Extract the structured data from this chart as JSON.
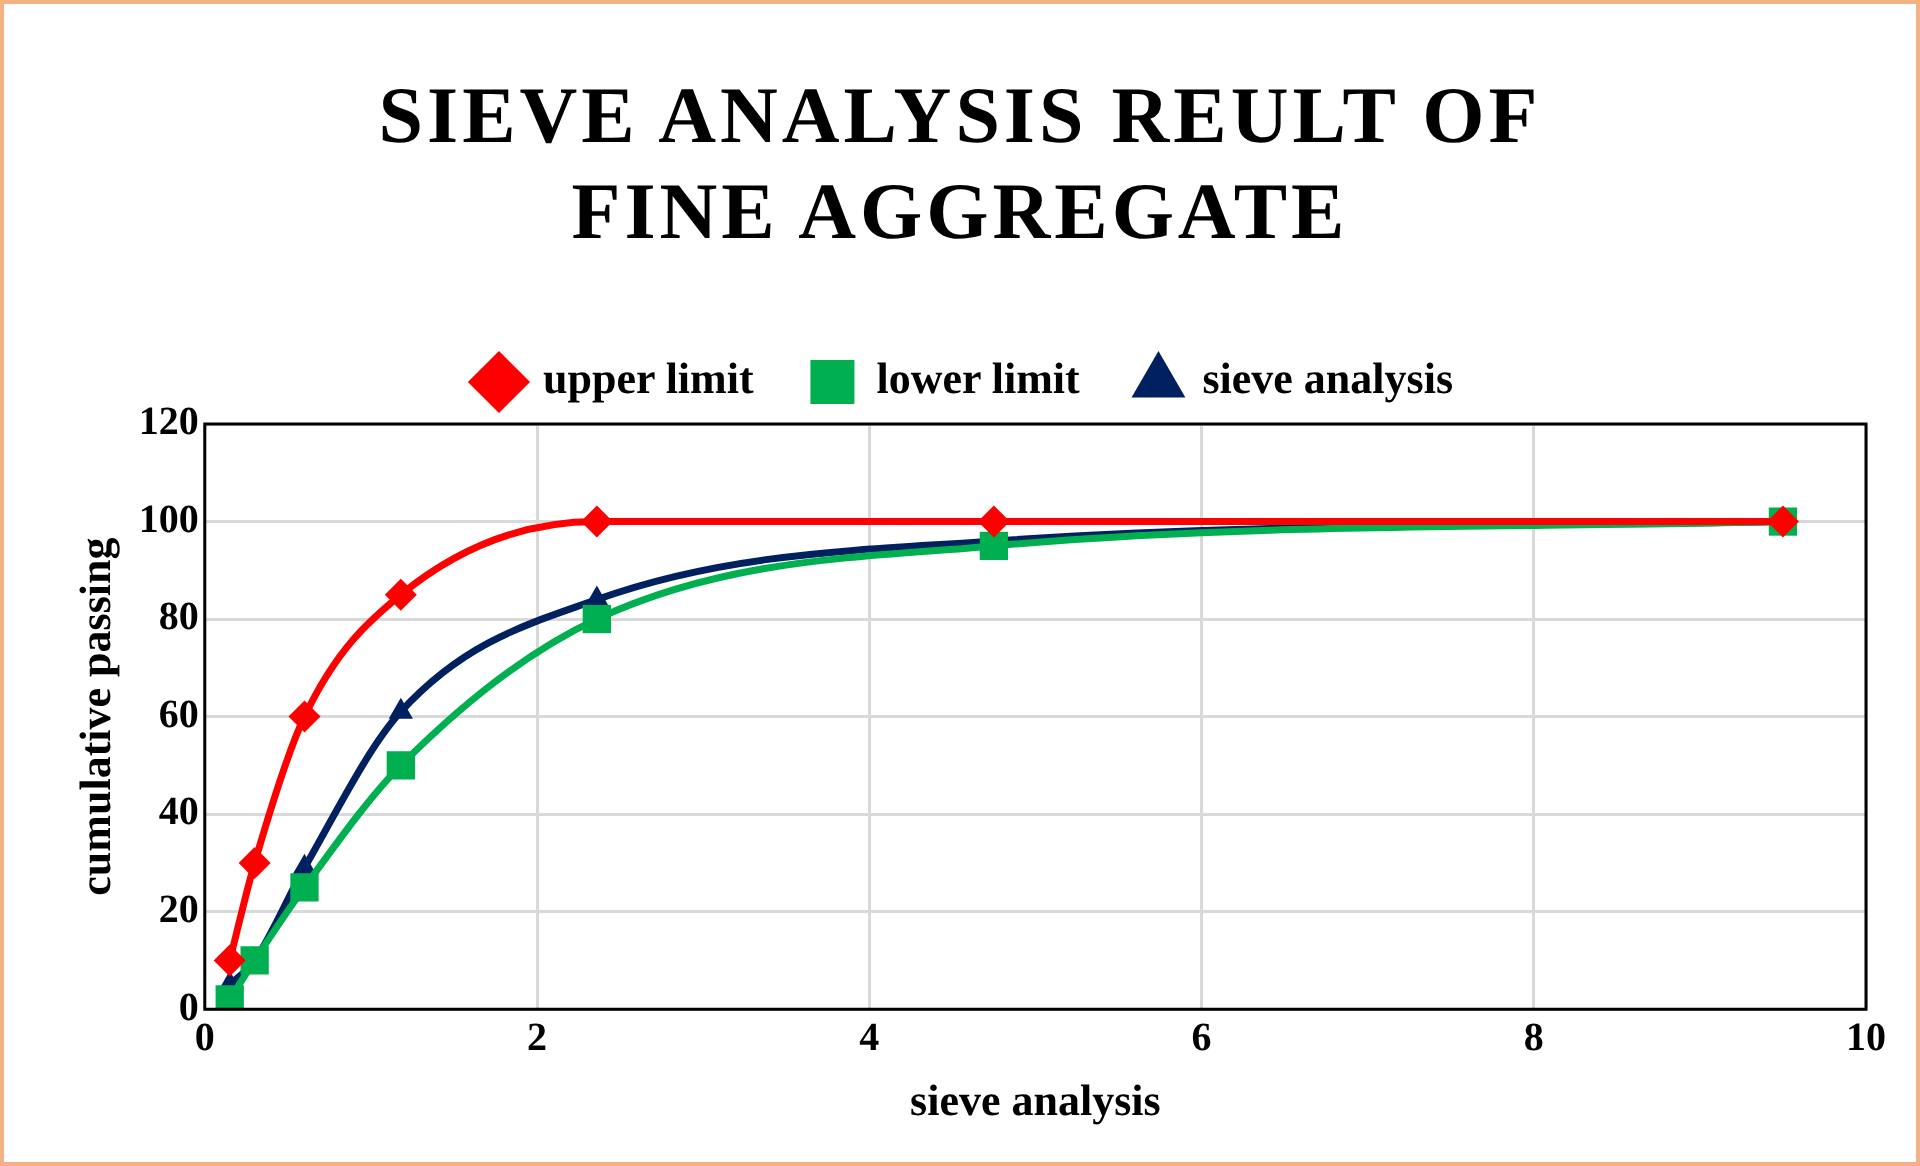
{
  "chart_data": {
    "type": "line",
    "title": "SIEVE ANALYSIS REULT OF FINE AGGREGATE",
    "xlabel": "sieve analysis",
    "ylabel": "cumulative passing",
    "x": [
      0.15,
      0.3,
      0.6,
      1.18,
      2.36,
      4.75,
      9.5
    ],
    "series": [
      {
        "name": "upper limit",
        "color": "#ff0000",
        "marker": "diamond",
        "values": [
          10,
          30,
          60,
          85,
          100,
          100,
          100
        ]
      },
      {
        "name": "lower limit",
        "color": "#00b050",
        "marker": "square",
        "values": [
          2,
          10,
          25,
          50,
          80,
          95,
          100
        ]
      },
      {
        "name": "sieve analysis",
        "color": "#002060",
        "marker": "triangle",
        "values": [
          5,
          10,
          29,
          61,
          84,
          96,
          100
        ]
      }
    ],
    "xlim": [
      0,
      10
    ],
    "xticks": [
      0,
      2,
      4,
      6,
      8,
      10
    ],
    "ylim": [
      0,
      120
    ],
    "yticks": [
      0,
      20,
      40,
      60,
      80,
      100,
      120
    ],
    "grid": true,
    "legend": "top",
    "line_style": "solid"
  }
}
